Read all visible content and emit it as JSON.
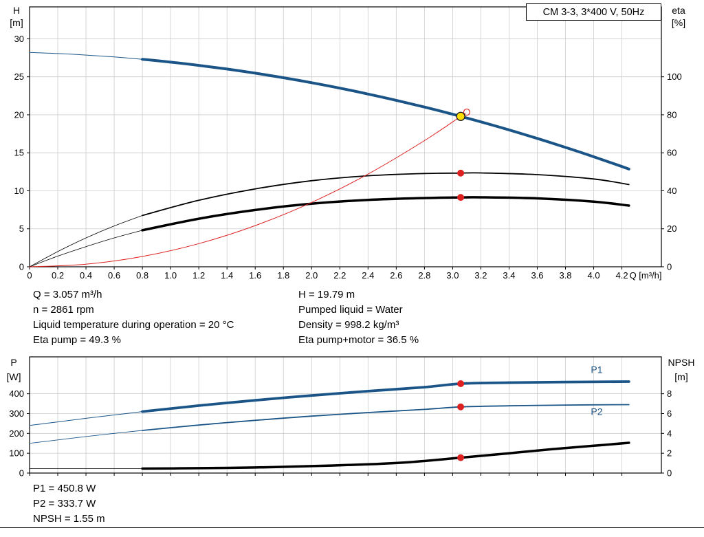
{
  "colors": {
    "blue": "#1b5588",
    "red": "#dd2020",
    "black": "#000000",
    "yellow": "#ffdf00",
    "grid": "#cccccc"
  },
  "info": {
    "left_lines": [
      "Q = 3.057 m³/h",
      "n = 2861 rpm",
      "Liquid temperature during operation = 20 °C",
      "Eta pump = 49.3 %"
    ],
    "right_lines": [
      "H = 19.79 m",
      "Pumped liquid = Water",
      "Density = 998.2 kg/m³",
      "Eta pump+motor = 36.5 %"
    ]
  },
  "footer_lines": [
    "P1 = 450.8 W",
    "P2 = 333.7 W",
    "NPSH = 1.55 m"
  ],
  "chart_data": [
    {
      "id": "qh-eta",
      "type": "line",
      "title": "CM 3-3, 3*400 V, 50Hz",
      "x": {
        "label": "Q [m³/h]",
        "min": 0,
        "max": 4.48,
        "show_labels": true,
        "tick_values": [
          0,
          0.2,
          0.4,
          0.6,
          0.8,
          1,
          1.2,
          1.4,
          1.6,
          1.8,
          2,
          2.2,
          2.4,
          2.6,
          2.8,
          3,
          3.2,
          3.4,
          3.6,
          3.8,
          4,
          4.2
        ],
        "tick_labels": [
          "0",
          "0.2",
          "0.4",
          "0.6",
          "0.8",
          "1.0",
          "1.2",
          "1.4",
          "1.6",
          "1.8",
          "2.0",
          "2.2",
          "2.4",
          "2.6",
          "2.8",
          "3.0",
          "3.2",
          "3.4",
          "3.6",
          "3.8",
          "4.0",
          "4.2"
        ]
      },
      "y_left": {
        "title_lines": [
          "H",
          "[m]"
        ],
        "min": 0,
        "max": 34.2,
        "tick_values": [
          0,
          5,
          10,
          15,
          20,
          25,
          30
        ],
        "tick_labels": [
          "0",
          "5",
          "10",
          "15",
          "20",
          "25",
          "30"
        ]
      },
      "y_right": {
        "title_lines": [
          "eta",
          "[%]"
        ],
        "min": 0,
        "max": 136.8,
        "tick_values": [
          0,
          20,
          40,
          60,
          80,
          100
        ],
        "tick_labels": [
          "0",
          "20",
          "40",
          "60",
          "80",
          "100"
        ]
      },
      "series": [
        {
          "name": "qh-curve-lead",
          "axis": "left",
          "color": "blue",
          "width": 1,
          "points": [
            [
              0,
              28.2
            ],
            [
              0.2,
              28.06
            ],
            [
              0.4,
              27.86
            ],
            [
              0.6,
              27.61
            ],
            [
              0.8,
              27.3
            ]
          ]
        },
        {
          "name": "qh-curve",
          "axis": "left",
          "color": "blue",
          "width": 4,
          "points": [
            [
              0.8,
              27.3
            ],
            [
              1,
              26.93
            ],
            [
              1.2,
              26.5
            ],
            [
              1.4,
              26.02
            ],
            [
              1.6,
              25.48
            ],
            [
              1.8,
              24.88
            ],
            [
              2,
              24.22
            ],
            [
              2.2,
              23.51
            ],
            [
              2.4,
              22.73
            ],
            [
              2.6,
              21.9
            ],
            [
              2.8,
              21.02
            ],
            [
              3,
              20.07
            ],
            [
              3.057,
              19.79
            ],
            [
              3.2,
              19.07
            ],
            [
              3.4,
              18.01
            ],
            [
              3.6,
              16.89
            ],
            [
              3.8,
              15.71
            ],
            [
              4,
              14.48
            ],
            [
              4.2,
              13.19
            ],
            [
              4.25,
              12.86
            ]
          ]
        },
        {
          "name": "eta-pump-lead",
          "axis": "right",
          "color": "black",
          "width": 0.8,
          "points": [
            [
              0,
              0
            ],
            [
              0.2,
              8
            ],
            [
              0.4,
              15.2
            ],
            [
              0.6,
              21.5
            ],
            [
              0.8,
              27
            ]
          ]
        },
        {
          "name": "eta-pump-curve",
          "axis": "right",
          "color": "black",
          "width": 1.8,
          "points": [
            [
              0.8,
              27
            ],
            [
              1.2,
              35
            ],
            [
              1.6,
              41
            ],
            [
              2,
              45.3
            ],
            [
              2.4,
              47.9
            ],
            [
              2.8,
              49.1
            ],
            [
              3.057,
              49.3
            ],
            [
              3.2,
              49.4
            ],
            [
              3.6,
              48.5
            ],
            [
              4,
              46.2
            ],
            [
              4.25,
              43.3
            ]
          ]
        },
        {
          "name": "eta-total-lead",
          "axis": "right",
          "color": "black",
          "width": 0.8,
          "points": [
            [
              0,
              0
            ],
            [
              0.2,
              5.6
            ],
            [
              0.4,
              10.6
            ],
            [
              0.6,
              15.2
            ],
            [
              0.8,
              19.2
            ]
          ]
        },
        {
          "name": "eta-total-curve",
          "axis": "right",
          "color": "black",
          "width": 3.5,
          "points": [
            [
              0.8,
              19.2
            ],
            [
              1.2,
              25.3
            ],
            [
              1.6,
              29.9
            ],
            [
              2,
              33.2
            ],
            [
              2.4,
              35.2
            ],
            [
              2.8,
              36.2
            ],
            [
              3.057,
              36.5
            ],
            [
              3.2,
              36.55
            ],
            [
              3.6,
              36
            ],
            [
              4,
              34.3
            ],
            [
              4.25,
              32.2
            ]
          ]
        },
        {
          "name": "system-curve",
          "axis": "left",
          "color": "red",
          "width": 1,
          "points": [
            [
              0,
              0
            ],
            [
              0.4,
              0.34
            ],
            [
              0.8,
              1.36
            ],
            [
              1.2,
              3.05
            ],
            [
              1.6,
              5.42
            ],
            [
              2,
              8.47
            ],
            [
              2.4,
              12.2
            ],
            [
              2.8,
              16.6
            ],
            [
              3.057,
              19.79
            ],
            [
              3.09,
              20.2
            ]
          ]
        }
      ],
      "markers": [
        {
          "type": "open",
          "axis": "left",
          "x": 3.1,
          "y": 20.35
        },
        {
          "type": "red",
          "axis": "right",
          "x": 3.057,
          "y": 49.3
        },
        {
          "type": "red",
          "axis": "right",
          "x": 3.057,
          "y": 36.5
        },
        {
          "type": "operating",
          "axis": "left",
          "x": 3.057,
          "y": 19.79
        }
      ],
      "labels": []
    },
    {
      "id": "power-npsh",
      "type": "line",
      "title": "",
      "x": {
        "label": "",
        "min": 0,
        "max": 4.48,
        "show_labels": false,
        "tick_values": [
          0,
          0.2,
          0.4,
          0.6,
          0.8,
          1,
          1.2,
          1.4,
          1.6,
          1.8,
          2,
          2.2,
          2.4,
          2.6,
          2.8,
          3,
          3.2,
          3.4,
          3.6,
          3.8,
          4,
          4.2
        ],
        "tick_labels": []
      },
      "y_left": {
        "title_lines": [
          "P",
          "[W]"
        ],
        "min": 0,
        "max": 586,
        "tick_values": [
          0,
          100,
          200,
          300,
          400
        ],
        "tick_labels": [
          "0",
          "100",
          "200",
          "300",
          "400"
        ]
      },
      "y_right": {
        "title_lines": [
          "NPSH",
          "[m]"
        ],
        "min": 0,
        "max": 11.72,
        "tick_values": [
          0,
          2,
          4,
          6,
          8
        ],
        "tick_labels": [
          "0",
          "2",
          "4",
          "6",
          "8"
        ]
      },
      "series": [
        {
          "name": "p1-lead",
          "axis": "left",
          "color": "blue",
          "width": 1,
          "points": [
            [
              0,
              240
            ],
            [
              0.2,
              258
            ],
            [
              0.4,
              276
            ],
            [
              0.6,
              293
            ],
            [
              0.8,
              310
            ]
          ]
        },
        {
          "name": "p1-curve",
          "axis": "left",
          "color": "blue",
          "width": 3.8,
          "points": [
            [
              0.8,
              310
            ],
            [
              1.2,
              340
            ],
            [
              1.6,
              367
            ],
            [
              2,
              391
            ],
            [
              2.4,
              413
            ],
            [
              2.8,
              433
            ],
            [
              3.057,
              450.8
            ],
            [
              3.4,
              456
            ],
            [
              3.8,
              459
            ],
            [
              4.25,
              461
            ]
          ]
        },
        {
          "name": "p2-lead",
          "axis": "left",
          "color": "blue",
          "width": 0.9,
          "points": [
            [
              0,
              150
            ],
            [
              0.2,
              167
            ],
            [
              0.4,
              184
            ],
            [
              0.6,
              200
            ],
            [
              0.8,
              215
            ]
          ]
        },
        {
          "name": "p2-curve",
          "axis": "left",
          "color": "blue",
          "width": 1.8,
          "points": [
            [
              0.8,
              215
            ],
            [
              1.2,
              242
            ],
            [
              1.6,
              266
            ],
            [
              2,
              287
            ],
            [
              2.4,
              305
            ],
            [
              2.8,
              321
            ],
            [
              3.057,
              333.7
            ],
            [
              3.4,
              339
            ],
            [
              3.8,
              343
            ],
            [
              4.25,
              345
            ]
          ]
        },
        {
          "name": "npsh-lead",
          "axis": "right",
          "color": "black",
          "width": 0.8,
          "points": [
            [
              0,
              0.45
            ],
            [
              0.8,
              0.45
            ]
          ]
        },
        {
          "name": "npsh-curve",
          "axis": "right",
          "color": "black",
          "width": 3.5,
          "points": [
            [
              0.8,
              0.45
            ],
            [
              1.2,
              0.49
            ],
            [
              1.6,
              0.56
            ],
            [
              2,
              0.7
            ],
            [
              2.4,
              0.88
            ],
            [
              2.7,
              1.1
            ],
            [
              3.057,
              1.55
            ],
            [
              3.4,
              2
            ],
            [
              3.7,
              2.4
            ],
            [
              4,
              2.75
            ],
            [
              4.25,
              3.05
            ]
          ]
        }
      ],
      "markers": [
        {
          "type": "red",
          "axis": "left",
          "x": 3.057,
          "y": 450.8
        },
        {
          "type": "red",
          "axis": "left",
          "x": 3.057,
          "y": 333.7
        },
        {
          "type": "red",
          "axis": "right",
          "x": 3.057,
          "y": 1.55
        }
      ],
      "labels": [
        {
          "text": "P1",
          "axis": "left",
          "x": 3.98,
          "y": 505,
          "color": "blue"
        },
        {
          "text": "P2",
          "axis": "left",
          "x": 3.98,
          "y": 293,
          "color": "blue"
        }
      ]
    }
  ]
}
